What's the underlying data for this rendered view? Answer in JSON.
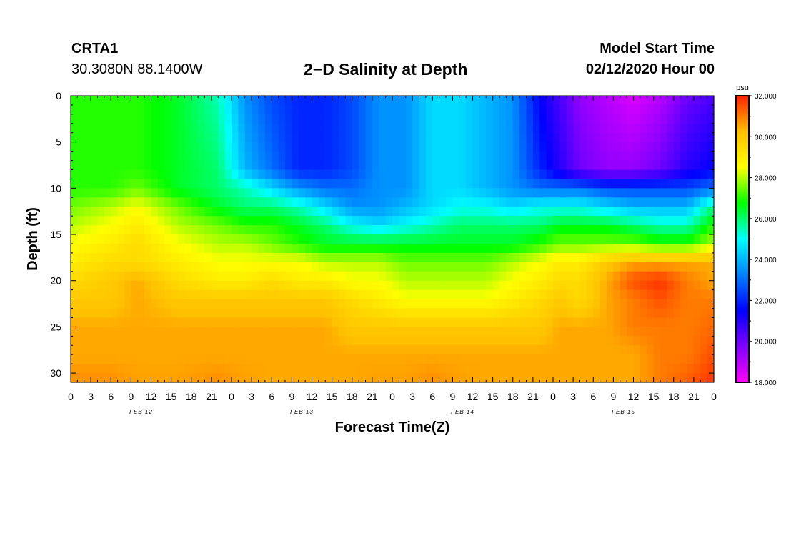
{
  "header": {
    "station": "CRTA1",
    "coordinates": "30.3080N 88.1400W",
    "title": "2−D Salinity at Depth",
    "model_start_label": "Model Start Time",
    "model_start_value": "02/12/2020 Hour 00"
  },
  "chart_data": {
    "type": "heatmap",
    "title": "2−D Salinity at Depth",
    "xlabel": "Forecast Time(Z)",
    "ylabel": "Depth (ft)",
    "x_ticks": [
      "0",
      "3",
      "6",
      "9",
      "12",
      "15",
      "18",
      "21",
      "0",
      "3",
      "6",
      "9",
      "12",
      "15",
      "18",
      "21",
      "0",
      "3",
      "6",
      "9",
      "12",
      "15",
      "18",
      "21",
      "0",
      "3",
      "6",
      "9",
      "12",
      "15",
      "18",
      "21",
      "0"
    ],
    "date_labels": [
      {
        "hour": 10.5,
        "label": "FEB 12"
      },
      {
        "hour": 34.5,
        "label": "FEB 13"
      },
      {
        "hour": 58.5,
        "label": "FEB 14"
      },
      {
        "hour": 82.5,
        "label": "FEB 15"
      }
    ],
    "xlim": [
      0,
      96
    ],
    "y_ticks": [
      "0",
      "5",
      "10",
      "15",
      "20",
      "25",
      "30"
    ],
    "y_tick_values": [
      0,
      5,
      10,
      15,
      20,
      25,
      30
    ],
    "ylim": [
      0,
      31
    ],
    "colorbar": {
      "unit": "psu",
      "range": [
        18,
        32
      ],
      "ticks": [
        "32.000",
        "30.000",
        "28.000",
        "26.000",
        "24.000",
        "22.000",
        "20.000",
        "18.000"
      ],
      "tick_values": [
        32,
        30,
        28,
        26,
        24,
        22,
        20,
        18
      ],
      "colors": [
        "#ff00ff",
        "#8000ff",
        "#0000ff",
        "#0080ff",
        "#00ffff",
        "#00ff00",
        "#ffff00",
        "#ffc000",
        "#ff2000"
      ]
    },
    "depths": [
      0,
      8,
      10,
      12,
      14,
      16,
      18,
      20,
      22,
      25,
      28,
      31
    ],
    "times": [
      0,
      6,
      10,
      16,
      22,
      26,
      30,
      34,
      38,
      42,
      46,
      50,
      54,
      58,
      62,
      66,
      70,
      73,
      76,
      80,
      84,
      88,
      92,
      96
    ],
    "values": [
      [
        27.0,
        27.0,
        27.0,
        26.5,
        25.5,
        23.5,
        22.5,
        22.0,
        22.0,
        22.5,
        23.5,
        23.5,
        24.5,
        24.5,
        24.0,
        23.5,
        21.5,
        20.5,
        19.5,
        19.0,
        18.5,
        19.0,
        20.0,
        20.5
      ],
      [
        27.0,
        27.0,
        27.0,
        26.5,
        26.0,
        24.0,
        23.0,
        22.0,
        22.0,
        22.5,
        23.5,
        23.5,
        24.5,
        24.5,
        24.0,
        23.5,
        22.0,
        21.0,
        20.0,
        19.5,
        19.5,
        20.0,
        21.0,
        21.5
      ],
      [
        27.0,
        27.0,
        27.5,
        26.5,
        26.0,
        25.5,
        24.5,
        23.5,
        23.0,
        23.0,
        23.5,
        23.5,
        24.5,
        24.5,
        24.0,
        23.5,
        23.0,
        23.0,
        23.0,
        22.5,
        22.5,
        22.5,
        22.5,
        23.0
      ],
      [
        27.5,
        28.0,
        28.5,
        27.5,
        26.5,
        26.0,
        26.0,
        25.5,
        24.5,
        23.5,
        23.5,
        24.0,
        24.5,
        25.0,
        25.0,
        24.5,
        25.0,
        25.0,
        25.0,
        24.5,
        24.0,
        24.0,
        24.0,
        26.0
      ],
      [
        28.0,
        28.5,
        29.0,
        28.0,
        27.5,
        27.0,
        27.0,
        26.5,
        26.0,
        25.0,
        24.5,
        25.0,
        25.5,
        26.0,
        26.0,
        26.0,
        26.0,
        26.5,
        26.5,
        26.5,
        26.0,
        25.5,
        25.5,
        27.0
      ],
      [
        28.5,
        29.0,
        29.5,
        28.5,
        28.0,
        28.0,
        27.5,
        27.0,
        26.5,
        26.5,
        26.5,
        26.5,
        26.5,
        26.5,
        26.5,
        26.5,
        27.0,
        27.5,
        27.5,
        27.5,
        27.5,
        27.0,
        27.0,
        28.0
      ],
      [
        29.0,
        29.5,
        29.5,
        29.0,
        28.5,
        28.5,
        28.5,
        28.5,
        28.0,
        28.0,
        28.0,
        27.5,
        27.5,
        27.5,
        27.5,
        28.0,
        28.5,
        29.0,
        29.0,
        30.0,
        30.5,
        30.5,
        30.5,
        30.5
      ],
      [
        29.5,
        30.0,
        30.5,
        29.5,
        29.0,
        29.0,
        29.5,
        29.0,
        29.0,
        28.5,
        28.5,
        28.0,
        28.0,
        28.0,
        28.0,
        28.5,
        29.0,
        29.5,
        29.5,
        30.5,
        31.5,
        31.8,
        31.0,
        30.5
      ],
      [
        30.0,
        30.0,
        30.5,
        30.0,
        30.0,
        30.0,
        30.0,
        30.0,
        30.0,
        29.5,
        29.0,
        28.5,
        28.5,
        28.5,
        28.5,
        29.0,
        29.5,
        30.0,
        29.5,
        30.5,
        31.0,
        31.5,
        31.0,
        31.0
      ],
      [
        30.5,
        30.5,
        30.5,
        30.5,
        30.5,
        30.5,
        30.5,
        30.5,
        30.5,
        30.0,
        30.0,
        30.0,
        30.0,
        30.0,
        30.0,
        30.0,
        30.0,
        30.5,
        30.5,
        30.5,
        31.0,
        31.0,
        31.0,
        31.2
      ],
      [
        30.5,
        30.5,
        30.5,
        30.5,
        30.5,
        30.5,
        30.5,
        30.5,
        30.5,
        30.5,
        30.5,
        30.5,
        30.5,
        30.5,
        30.5,
        30.5,
        30.5,
        30.5,
        30.5,
        30.5,
        30.5,
        31.0,
        31.0,
        31.5
      ],
      [
        30.8,
        30.8,
        30.6,
        30.6,
        30.8,
        30.6,
        30.5,
        30.5,
        30.5,
        30.5,
        30.6,
        30.6,
        30.8,
        30.6,
        30.5,
        30.5,
        30.5,
        30.5,
        30.5,
        30.5,
        30.5,
        31.0,
        31.3,
        31.8
      ]
    ]
  }
}
